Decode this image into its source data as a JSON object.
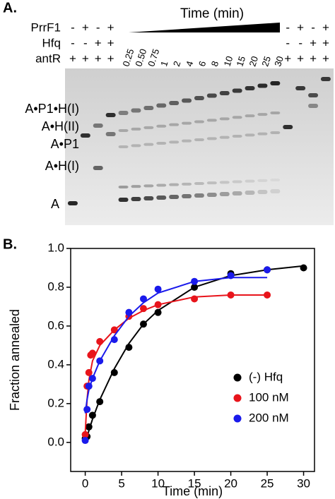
{
  "panel_a": {
    "label": "A.",
    "rows": [
      {
        "name": "PrrF1",
        "left": [
          "-",
          "+",
          "-",
          "+"
        ],
        "right": [
          "-",
          "+",
          "-",
          "+"
        ]
      },
      {
        "name": "Hfq",
        "left": [
          "-",
          "-",
          "+",
          "+"
        ],
        "right": [
          "-",
          "-",
          "+",
          "+"
        ]
      },
      {
        "name": "antR",
        "left": [
          "+",
          "+",
          "+",
          "+"
        ],
        "right": [
          "+",
          "+",
          "+",
          "+"
        ]
      }
    ],
    "time_title": "Time (min)",
    "times": [
      "0.25",
      "0.50",
      "0.75",
      "1",
      "2",
      "4",
      "6",
      "8",
      "10",
      "15",
      "20",
      "25",
      "30"
    ],
    "bands": [
      "A•P1•H(I)",
      "A•H(II)",
      "A•P1",
      "A•H(I)",
      "A"
    ]
  },
  "chart_data": {
    "type": "scatter",
    "panel_label": "B.",
    "x_label": "Time (min)",
    "y_label": "Fraction annealed",
    "xlim": [
      -2,
      31.5
    ],
    "ylim": [
      -0.15,
      1.0
    ],
    "xticks": [
      0,
      5,
      10,
      15,
      20,
      25,
      30
    ],
    "yticks": [
      {
        "value": 0,
        "label": "0.0"
      },
      0.2,
      0.4,
      0.6,
      0.8,
      {
        "value": 1,
        "label": "1.0"
      }
    ],
    "legend": "lower right",
    "series": [
      {
        "name": "(-) Hfq",
        "color": "#000000",
        "x": [
          0,
          0.25,
          0.5,
          1,
          2,
          4,
          6,
          8,
          10,
          15,
          20,
          25,
          30
        ],
        "values": [
          0.02,
          0.03,
          0.08,
          0.14,
          0.21,
          0.36,
          0.49,
          0.61,
          0.67,
          0.8,
          0.87,
          0.89,
          0.9
        ],
        "fit": {
          "x": [
            0,
            1,
            2,
            4,
            6,
            8,
            10,
            15,
            20,
            25,
            30
          ],
          "values": [
            0,
            0.12,
            0.22,
            0.38,
            0.51,
            0.61,
            0.68,
            0.8,
            0.86,
            0.89,
            0.91
          ]
        }
      },
      {
        "name": "100 nM",
        "color": "#e8141b",
        "x": [
          0,
          0.25,
          0.5,
          0.75,
          1,
          2,
          4,
          6,
          8,
          10,
          15,
          20,
          25
        ],
        "values": [
          0.04,
          0.29,
          0.36,
          0.45,
          0.46,
          0.52,
          0.58,
          0.65,
          0.69,
          0.71,
          0.74,
          0.76,
          0.76
        ],
        "fit": {
          "x": [
            0,
            0.25,
            0.5,
            1,
            2,
            4,
            6,
            8,
            10,
            15,
            20,
            25
          ],
          "values": [
            0.05,
            0.22,
            0.32,
            0.42,
            0.5,
            0.58,
            0.64,
            0.68,
            0.71,
            0.75,
            0.76,
            0.76
          ]
        }
      },
      {
        "name": "200 nM",
        "color": "#1a1aeb",
        "x": [
          0,
          0.25,
          0.5,
          1,
          2,
          4,
          6,
          8,
          10,
          15,
          20,
          25
        ],
        "values": [
          0.01,
          0.17,
          0.29,
          0.33,
          0.42,
          0.53,
          0.67,
          0.74,
          0.79,
          0.83,
          0.86,
          0.89
        ],
        "fit": {
          "x": [
            0,
            0.25,
            0.5,
            1,
            2,
            4,
            6,
            8,
            10,
            15,
            20,
            25
          ],
          "values": [
            0.15,
            0.22,
            0.27,
            0.33,
            0.42,
            0.55,
            0.65,
            0.72,
            0.77,
            0.83,
            0.85,
            0.85
          ]
        }
      }
    ]
  }
}
